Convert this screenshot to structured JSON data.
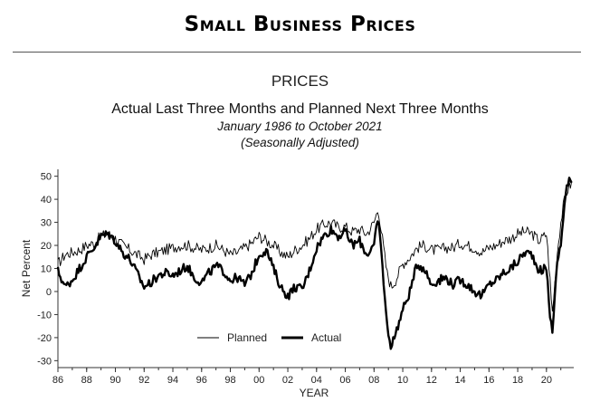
{
  "header": {
    "title": "Small Business Prices"
  },
  "section": {
    "title": "PRICES"
  },
  "chart_data": {
    "type": "line",
    "title": "Actual Last Three Months and Planned Next Three Months",
    "subtitle": "January 1986 to October 2021",
    "note": "(Seasonally Adjusted)",
    "xlabel": "YEAR",
    "ylabel": "Net Percent",
    "xlim": [
      1986,
      2021.9
    ],
    "ylim": [
      -33,
      53
    ],
    "yticks": [
      50,
      40,
      30,
      20,
      10,
      0,
      -10,
      -20,
      -30
    ],
    "ytick_labels": [
      "50",
      "40",
      "30",
      "20",
      "10",
      "0",
      "-10",
      "-20",
      "-30"
    ],
    "xticks": [
      1986,
      1988,
      1990,
      1992,
      1994,
      1996,
      1998,
      2000,
      2002,
      2004,
      2006,
      2008,
      2010,
      2012,
      2014,
      2016,
      2018,
      2020
    ],
    "xtick_labels": [
      "86",
      "88",
      "90",
      "92",
      "94",
      "96",
      "98",
      "00",
      "02",
      "04",
      "06",
      "08",
      "10",
      "12",
      "14",
      "16",
      "18",
      "20"
    ],
    "legend": {
      "placement": "bottom-center",
      "entries": [
        "Planned",
        "Actual"
      ]
    },
    "series": [
      {
        "name": "Planned",
        "style": "thin",
        "x": [
          1986.0,
          1986.5,
          1987.0,
          1987.5,
          1988.0,
          1988.5,
          1989.0,
          1989.5,
          1990.0,
          1990.5,
          1991.0,
          1991.5,
          1992.0,
          1992.5,
          1993.0,
          1993.5,
          1994.0,
          1994.5,
          1995.0,
          1995.5,
          1996.0,
          1996.5,
          1997.0,
          1997.5,
          1998.0,
          1998.5,
          1999.0,
          1999.5,
          2000.0,
          2000.5,
          2001.0,
          2001.5,
          2002.0,
          2002.5,
          2003.0,
          2003.5,
          2004.0,
          2004.5,
          2005.0,
          2005.5,
          2006.0,
          2006.5,
          2007.0,
          2007.5,
          2008.0,
          2008.3,
          2008.6,
          2008.9,
          2009.2,
          2009.5,
          2010.0,
          2010.5,
          2011.0,
          2011.5,
          2012.0,
          2012.5,
          2013.0,
          2013.5,
          2014.0,
          2014.5,
          2015.0,
          2015.5,
          2016.0,
          2016.5,
          2017.0,
          2017.5,
          2018.0,
          2018.5,
          2019.0,
          2019.5,
          2020.0,
          2020.25,
          2020.4,
          2020.6,
          2020.8,
          2021.0,
          2021.2,
          2021.4,
          2021.6,
          2021.8
        ],
        "y": [
          12,
          16,
          17,
          18,
          20,
          21,
          24,
          25,
          23,
          20,
          18,
          16,
          14,
          16,
          17,
          18,
          19,
          20,
          20,
          19,
          18,
          19,
          20,
          18,
          16,
          17,
          19,
          21,
          24,
          22,
          20,
          17,
          15,
          18,
          20,
          23,
          27,
          29,
          30,
          28,
          28,
          26,
          27,
          25,
          30,
          36,
          22,
          8,
          2,
          5,
          12,
          15,
          19,
          20,
          18,
          18,
          19,
          19,
          21,
          20,
          19,
          17,
          19,
          20,
          22,
          23,
          25,
          26,
          25,
          22,
          25,
          5,
          -10,
          5,
          20,
          30,
          38,
          43,
          46,
          47
        ]
      },
      {
        "name": "Actual",
        "style": "bold",
        "x": [
          1986.0,
          1986.5,
          1987.0,
          1987.5,
          1988.0,
          1988.5,
          1989.0,
          1989.5,
          1990.0,
          1990.5,
          1991.0,
          1991.5,
          1992.0,
          1992.5,
          1993.0,
          1993.5,
          1994.0,
          1994.5,
          1995.0,
          1995.5,
          1996.0,
          1996.5,
          1997.0,
          1997.5,
          1998.0,
          1998.5,
          1999.0,
          1999.5,
          2000.0,
          2000.5,
          2001.0,
          2001.5,
          2002.0,
          2002.5,
          2003.0,
          2003.5,
          2004.0,
          2004.5,
          2005.0,
          2005.5,
          2006.0,
          2006.5,
          2007.0,
          2007.5,
          2008.0,
          2008.3,
          2008.6,
          2008.9,
          2009.2,
          2009.5,
          2010.0,
          2010.5,
          2011.0,
          2011.5,
          2012.0,
          2012.5,
          2013.0,
          2013.5,
          2014.0,
          2014.5,
          2015.0,
          2015.5,
          2016.0,
          2016.5,
          2017.0,
          2017.5,
          2018.0,
          2018.5,
          2019.0,
          2019.5,
          2020.0,
          2020.25,
          2020.4,
          2020.6,
          2020.8,
          2021.0,
          2021.2,
          2021.4,
          2021.6,
          2021.8
        ],
        "y": [
          9,
          2,
          5,
          10,
          15,
          19,
          24,
          25,
          22,
          17,
          14,
          8,
          2,
          4,
          7,
          8,
          7,
          9,
          11,
          6,
          4,
          8,
          11,
          9,
          5,
          6,
          3,
          8,
          16,
          18,
          10,
          2,
          -2,
          2,
          1,
          9,
          19,
          24,
          27,
          24,
          26,
          20,
          22,
          16,
          20,
          32,
          10,
          -15,
          -24,
          -18,
          -8,
          0,
          12,
          10,
          3,
          5,
          6,
          3,
          5,
          3,
          0,
          -2,
          3,
          5,
          8,
          10,
          13,
          17,
          16,
          9,
          10,
          -10,
          -18,
          0,
          15,
          20,
          35,
          45,
          48,
          47
        ]
      }
    ]
  }
}
